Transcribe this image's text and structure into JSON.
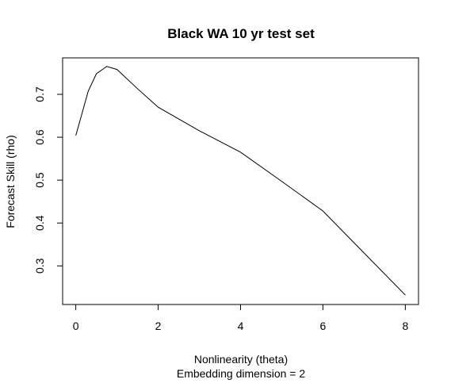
{
  "chart_data": {
    "type": "line",
    "title": "Black WA 10 yr test set",
    "xlabel": "Nonlinearity (theta)",
    "sublabel": "Embedding dimension = 2",
    "ylabel": "Forecast Skill (rho)",
    "xlim": [
      -0.32,
      8.32
    ],
    "ylim": [
      0.21,
      0.785
    ],
    "xticks": [
      0,
      2,
      4,
      6,
      8
    ],
    "yticks": [
      0.3,
      0.4,
      0.5,
      0.6,
      0.7
    ],
    "grid": false,
    "series": [
      {
        "x": [
          0,
          0.1,
          0.3,
          0.5,
          0.75,
          1,
          1.5,
          2,
          3,
          4,
          5,
          6,
          7,
          8
        ],
        "y": [
          0.604,
          0.638,
          0.707,
          0.748,
          0.765,
          0.758,
          0.713,
          0.67,
          0.615,
          0.565,
          0.497,
          0.428,
          0.33,
          0.232
        ],
        "color": "#000000"
      }
    ]
  }
}
